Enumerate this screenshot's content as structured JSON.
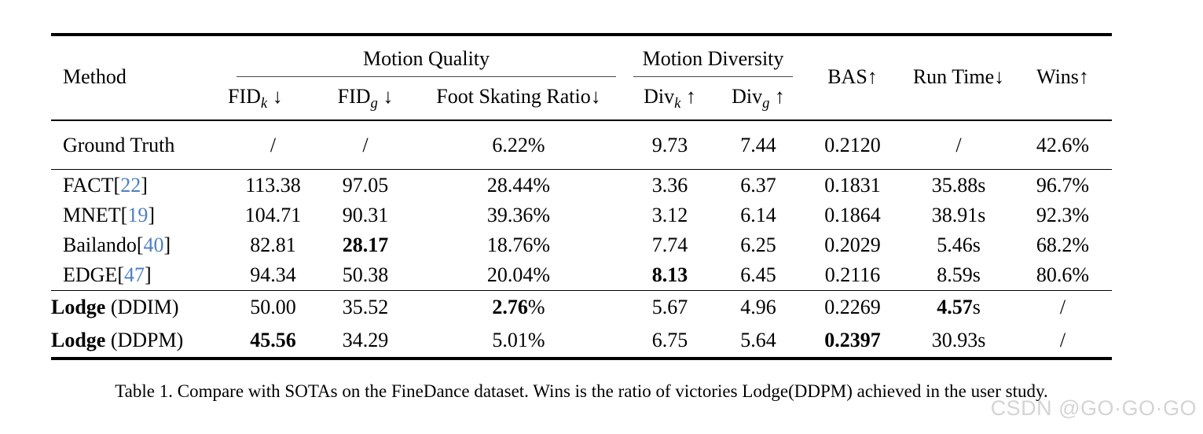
{
  "page": {
    "caption": "Table 1. Compare with SOTAs on the FineDance dataset. Wins is the ratio of victories Lodge(DDPM) achieved in the user study.",
    "watermark": "CSDN @GO·GO·GO"
  },
  "colors": {
    "citation_blue": "#4d80c4",
    "watermark_gray": "#d4d4d4",
    "rule_black": "#000000",
    "group_rule_gray": "#4a4a4a"
  },
  "table": {
    "header": {
      "method": "Method",
      "groups": [
        {
          "label": "Motion Quality",
          "span": 3
        },
        {
          "label": "Motion Diversity",
          "span": 2
        }
      ],
      "subheaders": [
        {
          "base": "FID",
          "sub": "k",
          "arrow": " ↓"
        },
        {
          "base": "FID",
          "sub": "g",
          "arrow": " ↓"
        },
        {
          "base": "Foot Skating Ratio",
          "sub": "",
          "arrow": "↓"
        },
        {
          "base": "Div",
          "sub": "k",
          "arrow": " ↑"
        },
        {
          "base": "Div",
          "sub": "g",
          "arrow": " ↑"
        }
      ],
      "singles": [
        {
          "label": "BAS",
          "arrow": "↑"
        },
        {
          "label": "Run Time",
          "arrow": "↓"
        },
        {
          "label": "Wins",
          "arrow": "↑"
        }
      ]
    },
    "rows": [
      {
        "section": "gt",
        "sep": false,
        "cells": [
          [
            [
              "Ground Truth",
              ""
            ]
          ],
          [
            [
              "/",
              ""
            ]
          ],
          [
            [
              "/",
              ""
            ]
          ],
          [
            [
              "6.22%",
              ""
            ]
          ],
          [
            [
              "9.73",
              ""
            ]
          ],
          [
            [
              "7.44",
              ""
            ]
          ],
          [
            [
              "0.2120",
              ""
            ]
          ],
          [
            [
              "/",
              ""
            ]
          ],
          [
            [
              "42.6%",
              ""
            ]
          ]
        ]
      },
      {
        "section": "sota",
        "sep": true,
        "cells": [
          [
            [
              "FACT[",
              ""
            ],
            [
              "22",
              "cite"
            ],
            [
              "]",
              ""
            ]
          ],
          [
            [
              "113.38",
              ""
            ]
          ],
          [
            [
              "97.05",
              ""
            ]
          ],
          [
            [
              "28.44%",
              ""
            ]
          ],
          [
            [
              "3.36",
              ""
            ]
          ],
          [
            [
              "6.37",
              ""
            ]
          ],
          [
            [
              "0.1831",
              ""
            ]
          ],
          [
            [
              "35.88s",
              ""
            ]
          ],
          [
            [
              "96.7%",
              ""
            ]
          ]
        ]
      },
      {
        "section": "sota",
        "sep": false,
        "cells": [
          [
            [
              "MNET[",
              ""
            ],
            [
              "19",
              "cite"
            ],
            [
              "]",
              ""
            ]
          ],
          [
            [
              "104.71",
              ""
            ]
          ],
          [
            [
              "90.31",
              ""
            ]
          ],
          [
            [
              "39.36%",
              ""
            ]
          ],
          [
            [
              "3.12",
              ""
            ]
          ],
          [
            [
              "6.14",
              ""
            ]
          ],
          [
            [
              "0.1864",
              ""
            ]
          ],
          [
            [
              "38.91s",
              ""
            ]
          ],
          [
            [
              "92.3%",
              ""
            ]
          ]
        ]
      },
      {
        "section": "sota",
        "sep": false,
        "cells": [
          [
            [
              "Bailando[",
              ""
            ],
            [
              "40",
              "cite"
            ],
            [
              "]",
              ""
            ]
          ],
          [
            [
              "82.81",
              ""
            ]
          ],
          [
            [
              "28.17",
              "b"
            ]
          ],
          [
            [
              "18.76%",
              ""
            ]
          ],
          [
            [
              "7.74",
              ""
            ]
          ],
          [
            [
              "6.25",
              ""
            ]
          ],
          [
            [
              "0.2029",
              ""
            ]
          ],
          [
            [
              "5.46s",
              ""
            ]
          ],
          [
            [
              "68.2%",
              ""
            ]
          ]
        ]
      },
      {
        "section": "sota",
        "sep": false,
        "cells": [
          [
            [
              "EDGE[",
              ""
            ],
            [
              "47",
              "cite"
            ],
            [
              "]",
              ""
            ]
          ],
          [
            [
              "94.34",
              ""
            ]
          ],
          [
            [
              "50.38",
              ""
            ]
          ],
          [
            [
              "20.04%",
              ""
            ]
          ],
          [
            [
              "8.13",
              "b"
            ]
          ],
          [
            [
              "6.45",
              ""
            ]
          ],
          [
            [
              "0.2116",
              ""
            ]
          ],
          [
            [
              "8.59s",
              ""
            ]
          ],
          [
            [
              "80.6%",
              ""
            ]
          ]
        ]
      },
      {
        "section": "ours",
        "sep": true,
        "cells": [
          [
            [
              "Lodge",
              "b"
            ],
            [
              " (DDIM)",
              ""
            ]
          ],
          [
            [
              "50.00",
              ""
            ]
          ],
          [
            [
              "35.52",
              ""
            ]
          ],
          [
            [
              "2.76",
              "b"
            ],
            [
              "%",
              ""
            ]
          ],
          [
            [
              "5.67",
              ""
            ]
          ],
          [
            [
              "4.96",
              ""
            ]
          ],
          [
            [
              "0.2269",
              ""
            ]
          ],
          [
            [
              "4.57",
              "b"
            ],
            [
              "s",
              ""
            ]
          ],
          [
            [
              "/",
              ""
            ]
          ]
        ]
      },
      {
        "section": "ours",
        "sep": false,
        "cells": [
          [
            [
              "Lodge",
              "b"
            ],
            [
              " (DDPM)",
              ""
            ]
          ],
          [
            [
              "45.56",
              "b"
            ]
          ],
          [
            [
              "34.29",
              ""
            ]
          ],
          [
            [
              "5.01%",
              ""
            ]
          ],
          [
            [
              "6.75",
              ""
            ]
          ],
          [
            [
              "5.64",
              ""
            ]
          ],
          [
            [
              "0.2397",
              "b"
            ]
          ],
          [
            [
              "30.93s",
              ""
            ]
          ],
          [
            [
              "/",
              ""
            ]
          ]
        ]
      }
    ]
  }
}
